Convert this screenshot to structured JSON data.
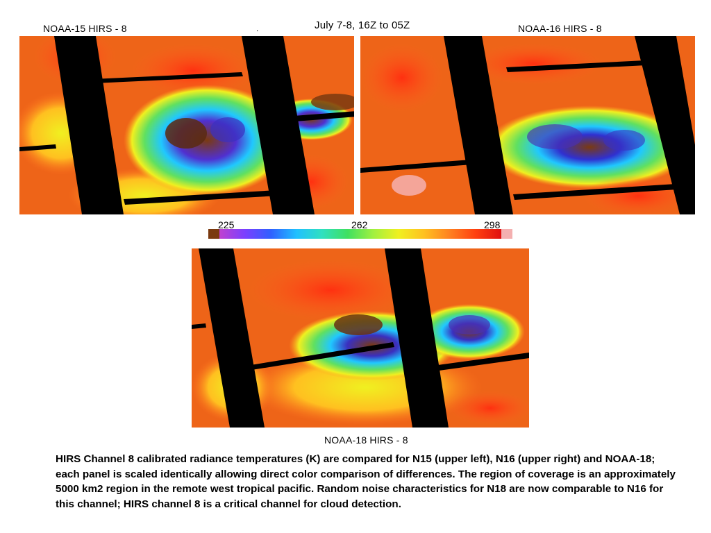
{
  "header": {
    "left_label": "NOAA-15   HIRS - 8",
    "center_label": "July 7-8, 16Z to 05Z",
    "right_label": "NOAA-16   HIRS - 8",
    "dot": "."
  },
  "colorbar": {
    "min_label": "225",
    "mid_label": "262",
    "max_label": "298",
    "colors": [
      "#7a3a10",
      "#c040d0",
      "#7a40ff",
      "#3060ff",
      "#20c0ff",
      "#30e0c0",
      "#40e060",
      "#a0f040",
      "#f0f020",
      "#ffc020",
      "#ff8020",
      "#ff4010",
      "#e01010",
      "#f4b0b0"
    ]
  },
  "panels": {
    "n15_label": "NOAA-15   HIRS - 8",
    "n16_label": "NOAA-16   HIRS - 8",
    "n18_label": "NOAA-18   HIRS - 8"
  },
  "bottom_label": "NOAA-18   HIRS - 8",
  "caption": "HIRS Channel 8 calibrated radiance temperatures (K) are compared for N15 (upper left), N16 (upper right) and NOAA-18; each panel is scaled identically allowing direct color comparison of differences.   The region of coverage is an approximately 5000 km2  region in the remote west tropical pacific.  Random noise characteristics for N18 are now comparable to N16 for this channel; HIRS channel 8 is a critical channel for cloud detection."
}
